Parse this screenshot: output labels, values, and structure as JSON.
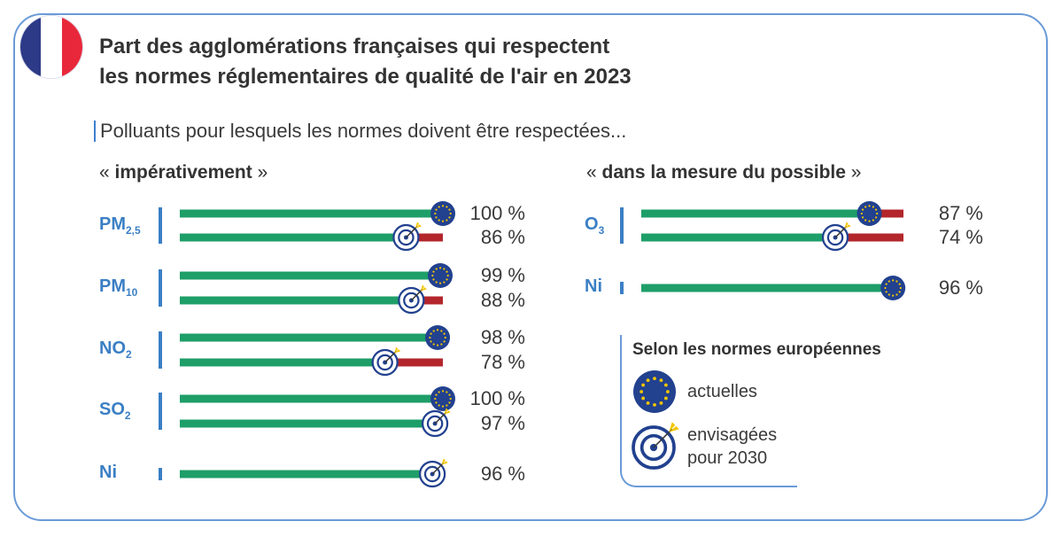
{
  "title_line1": "Part des agglomérations françaises qui respectent",
  "title_line2": "les normes réglementaires de qualité de l'air en 2023",
  "subtitle": "Polluants pour lesquels les normes doivent être respectées...",
  "colors": {
    "compliant": "#1e9e68",
    "non_compliant": "#b3262b",
    "label": "#3b7fc4",
    "eu_blue": "#22418f",
    "star": "#f2c500"
  },
  "chart_data": {
    "type": "bar",
    "orientation": "horizontal",
    "xlim": [
      0,
      100
    ],
    "unit": "%",
    "groups": [
      {
        "title_open": "« ",
        "title": "impérativement",
        "title_close": " »",
        "pollutants": [
          {
            "name": "PM",
            "sub": "2,5",
            "bars": [
              {
                "value": 100,
                "label": "100 %",
                "marker": "eu-current"
              },
              {
                "value": 86,
                "label": "86 %",
                "marker": "target-2030"
              }
            ]
          },
          {
            "name": "PM",
            "sub": "10",
            "bars": [
              {
                "value": 99,
                "label": "99 %",
                "marker": "eu-current"
              },
              {
                "value": 88,
                "label": "88 %",
                "marker": "target-2030"
              }
            ]
          },
          {
            "name": "NO",
            "sub": "2",
            "bars": [
              {
                "value": 98,
                "label": "98 %",
                "marker": "eu-current"
              },
              {
                "value": 78,
                "label": "78 %",
                "marker": "target-2030"
              }
            ]
          },
          {
            "name": "SO",
            "sub": "2",
            "bars": [
              {
                "value": 100,
                "label": "100 %",
                "marker": "eu-current"
              },
              {
                "value": 97,
                "label": "97 %",
                "marker": "target-2030"
              }
            ]
          },
          {
            "name": "Ni",
            "sub": "",
            "bars": [
              {
                "value": 96,
                "label": "96 %",
                "marker": "target-2030"
              }
            ]
          }
        ]
      },
      {
        "title_open": "« ",
        "title": "dans la mesure du possible",
        "title_close": " »",
        "pollutants": [
          {
            "name": "O",
            "sub": "3",
            "bars": [
              {
                "value": 87,
                "label": "87 %",
                "marker": "eu-current"
              },
              {
                "value": 74,
                "label": "74 %",
                "marker": "target-2030"
              }
            ]
          },
          {
            "name": "Ni",
            "sub": "",
            "bars": [
              {
                "value": 96,
                "label": "96 %",
                "marker": "eu-current"
              }
            ]
          }
        ]
      }
    ]
  },
  "legend": {
    "title": "Selon les normes européennes",
    "items": [
      {
        "marker": "eu-current",
        "label": "actuelles"
      },
      {
        "marker": "target-2030",
        "label_line1": "envisagées",
        "label_line2": "pour 2030"
      }
    ]
  }
}
